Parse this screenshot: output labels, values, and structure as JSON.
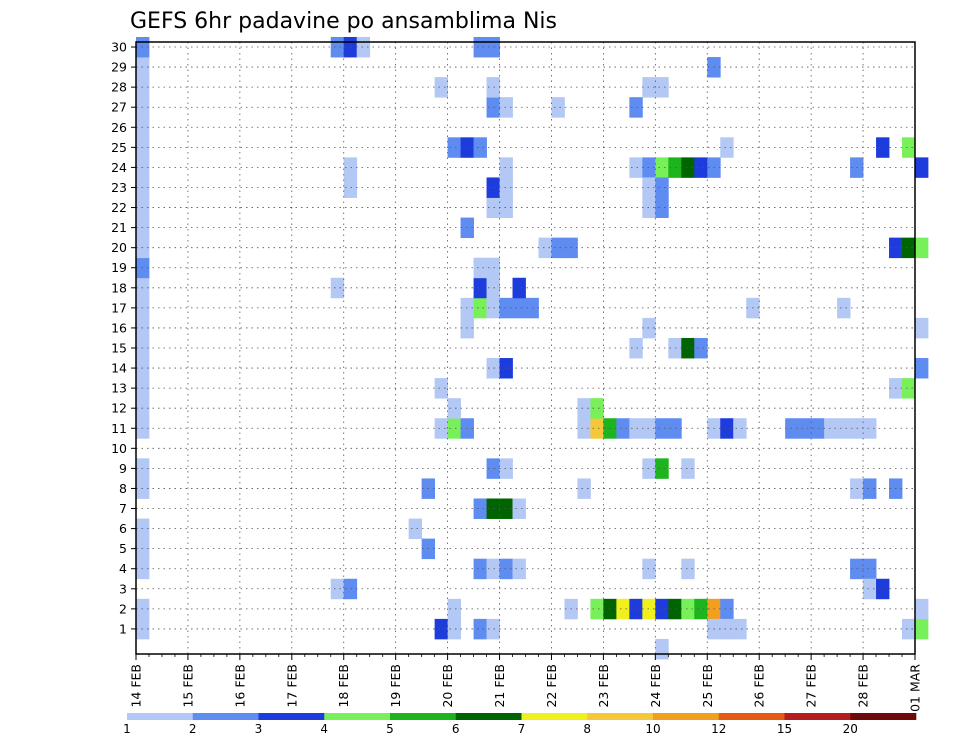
{
  "chart_data": {
    "type": "heatmap",
    "title": "GEFS 6hr padavine po ansamblima Nis",
    "xlabel": "",
    "ylabel": "",
    "x_tick_labels": [
      "14 FEB",
      "15 FEB",
      "16 FEB",
      "17 FEB",
      "18 FEB",
      "19 FEB",
      "20 FEB",
      "21 FEB",
      "22 FEB",
      "23 FEB",
      "24 FEB",
      "25 FEB",
      "26 FEB",
      "27 FEB",
      "28 FEB",
      "01 MAR"
    ],
    "x_unit": "6-hour step from 14 FEB 00Z",
    "y_tick_labels": [
      1,
      2,
      3,
      4,
      5,
      6,
      7,
      8,
      9,
      10,
      11,
      12,
      13,
      14,
      15,
      16,
      17,
      18,
      19,
      20,
      21,
      22,
      23,
      24,
      25,
      26,
      27,
      28,
      29,
      30
    ],
    "grid": true,
    "colorbar": {
      "labels": [
        "1",
        "2",
        "3",
        "4",
        "5",
        "6",
        "7",
        "8",
        "10",
        "12",
        "15",
        "20"
      ],
      "colors": [
        "#b4c8f5",
        "#5f8cf0",
        "#1e3cdc",
        "#78f05a",
        "#1eb41e",
        "#006400",
        "#f0f01e",
        "#f5c83c",
        "#f0a01e",
        "#e65a14",
        "#b41e1e",
        "#6e0a0a"
      ]
    },
    "values": [
      {
        "x": 0,
        "y": 1,
        "c": 1
      },
      {
        "x": 0,
        "y": 2,
        "c": 1
      },
      {
        "x": 0,
        "y": 4,
        "c": 1
      },
      {
        "x": 0,
        "y": 5,
        "c": 1
      },
      {
        "x": 0,
        "y": 6,
        "c": 1
      },
      {
        "x": 0,
        "y": 8,
        "c": 1
      },
      {
        "x": 0,
        "y": 9,
        "c": 1
      },
      {
        "x": 0,
        "y": 11,
        "c": 1
      },
      {
        "x": 0,
        "y": 12,
        "c": 1
      },
      {
        "x": 0,
        "y": 13,
        "c": 1
      },
      {
        "x": 0,
        "y": 14,
        "c": 1
      },
      {
        "x": 0,
        "y": 15,
        "c": 1
      },
      {
        "x": 0,
        "y": 16,
        "c": 1
      },
      {
        "x": 0,
        "y": 17,
        "c": 1
      },
      {
        "x": 0,
        "y": 18,
        "c": 1
      },
      {
        "x": 0,
        "y": 19,
        "c": 2
      },
      {
        "x": 0,
        "y": 20,
        "c": 1
      },
      {
        "x": 0,
        "y": 21,
        "c": 1
      },
      {
        "x": 0,
        "y": 22,
        "c": 1
      },
      {
        "x": 0,
        "y": 23,
        "c": 1
      },
      {
        "x": 0,
        "y": 24,
        "c": 1
      },
      {
        "x": 0,
        "y": 25,
        "c": 1
      },
      {
        "x": 0,
        "y": 26,
        "c": 1
      },
      {
        "x": 0,
        "y": 27,
        "c": 1
      },
      {
        "x": 0,
        "y": 28,
        "c": 1
      },
      {
        "x": 0,
        "y": 29,
        "c": 1
      },
      {
        "x": 0,
        "y": 30,
        "c": 2
      },
      {
        "x": 15,
        "y": 3,
        "c": 1
      },
      {
        "x": 16,
        "y": 3,
        "c": 2
      },
      {
        "x": 15,
        "y": 18,
        "c": 1
      },
      {
        "x": 16,
        "y": 23,
        "c": 1
      },
      {
        "x": 16,
        "y": 24,
        "c": 1
      },
      {
        "x": 15,
        "y": 30,
        "c": 2
      },
      {
        "x": 16,
        "y": 30,
        "c": 3
      },
      {
        "x": 17,
        "y": 30,
        "c": 1
      },
      {
        "x": 21,
        "y": 6,
        "c": 1
      },
      {
        "x": 22,
        "y": 5,
        "c": 2
      },
      {
        "x": 22,
        "y": 8,
        "c": 2
      },
      {
        "x": 23,
        "y": 1,
        "c": 3
      },
      {
        "x": 23,
        "y": 11,
        "c": 1
      },
      {
        "x": 24,
        "y": 11,
        "c": 4
      },
      {
        "x": 25,
        "y": 11,
        "c": 2
      },
      {
        "x": 24,
        "y": 12,
        "c": 1
      },
      {
        "x": 23,
        "y": 13,
        "c": 1
      },
      {
        "x": 24,
        "y": 1,
        "c": 1
      },
      {
        "x": 24,
        "y": 2,
        "c": 1
      },
      {
        "x": 25,
        "y": 21,
        "c": 2
      },
      {
        "x": 24,
        "y": 25,
        "c": 2
      },
      {
        "x": 25,
        "y": 25,
        "c": 3
      },
      {
        "x": 26,
        "y": 25,
        "c": 2
      },
      {
        "x": 23,
        "y": 28,
        "c": 1
      },
      {
        "x": 26,
        "y": 1,
        "c": 2
      },
      {
        "x": 27,
        "y": 1,
        "c": 1
      },
      {
        "x": 26,
        "y": 4,
        "c": 2
      },
      {
        "x": 27,
        "y": 4,
        "c": 1
      },
      {
        "x": 28,
        "y": 4,
        "c": 2
      },
      {
        "x": 29,
        "y": 4,
        "c": 1
      },
      {
        "x": 26,
        "y": 7,
        "c": 2
      },
      {
        "x": 27,
        "y": 7,
        "c": 6
      },
      {
        "x": 28,
        "y": 7,
        "c": 6
      },
      {
        "x": 29,
        "y": 7,
        "c": 1
      },
      {
        "x": 27,
        "y": 9,
        "c": 2
      },
      {
        "x": 28,
        "y": 9,
        "c": 1
      },
      {
        "x": 27,
        "y": 14,
        "c": 1
      },
      {
        "x": 28,
        "y": 14,
        "c": 3
      },
      {
        "x": 25,
        "y": 16,
        "c": 1
      },
      {
        "x": 25,
        "y": 17,
        "c": 1
      },
      {
        "x": 26,
        "y": 17,
        "c": 4
      },
      {
        "x": 27,
        "y": 17,
        "c": 1
      },
      {
        "x": 28,
        "y": 17,
        "c": 2
      },
      {
        "x": 29,
        "y": 17,
        "c": 2
      },
      {
        "x": 30,
        "y": 17,
        "c": 2
      },
      {
        "x": 26,
        "y": 18,
        "c": 3
      },
      {
        "x": 27,
        "y": 18,
        "c": 1
      },
      {
        "x": 29,
        "y": 18,
        "c": 3
      },
      {
        "x": 26,
        "y": 19,
        "c": 1
      },
      {
        "x": 27,
        "y": 19,
        "c": 1
      },
      {
        "x": 27,
        "y": 22,
        "c": 1
      },
      {
        "x": 28,
        "y": 22,
        "c": 1
      },
      {
        "x": 27,
        "y": 23,
        "c": 3
      },
      {
        "x": 28,
        "y": 23,
        "c": 1
      },
      {
        "x": 28,
        "y": 24,
        "c": 1
      },
      {
        "x": 27,
        "y": 27,
        "c": 2
      },
      {
        "x": 28,
        "y": 27,
        "c": 1
      },
      {
        "x": 27,
        "y": 28,
        "c": 1
      },
      {
        "x": 26,
        "y": 30,
        "c": 2
      },
      {
        "x": 27,
        "y": 30,
        "c": 2
      },
      {
        "x": 31,
        "y": 20,
        "c": 1
      },
      {
        "x": 32,
        "y": 20,
        "c": 2
      },
      {
        "x": 33,
        "y": 20,
        "c": 2
      },
      {
        "x": 32,
        "y": 27,
        "c": 1
      },
      {
        "x": 33,
        "y": 2,
        "c": 1
      },
      {
        "x": 34,
        "y": 8,
        "c": 1
      },
      {
        "x": 34,
        "y": 11,
        "c": 1
      },
      {
        "x": 35,
        "y": 11,
        "c": 8
      },
      {
        "x": 36,
        "y": 11,
        "c": 5
      },
      {
        "x": 37,
        "y": 11,
        "c": 2
      },
      {
        "x": 38,
        "y": 11,
        "c": 1
      },
      {
        "x": 39,
        "y": 11,
        "c": 1
      },
      {
        "x": 40,
        "y": 11,
        "c": 2
      },
      {
        "x": 41,
        "y": 11,
        "c": 2
      },
      {
        "x": 34,
        "y": 12,
        "c": 1
      },
      {
        "x": 35,
        "y": 12,
        "c": 4
      },
      {
        "x": 35,
        "y": 2,
        "c": 4
      },
      {
        "x": 36,
        "y": 2,
        "c": 6
      },
      {
        "x": 37,
        "y": 2,
        "c": 7
      },
      {
        "x": 38,
        "y": 2,
        "c": 3
      },
      {
        "x": 39,
        "y": 2,
        "c": 7
      },
      {
        "x": 40,
        "y": 2,
        "c": 3
      },
      {
        "x": 41,
        "y": 2,
        "c": 6
      },
      {
        "x": 42,
        "y": 2,
        "c": 4
      },
      {
        "x": 43,
        "y": 2,
        "c": 5
      },
      {
        "x": 44,
        "y": 2,
        "c": 9
      },
      {
        "x": 45,
        "y": 2,
        "c": 2
      },
      {
        "x": 38,
        "y": 15,
        "c": 1
      },
      {
        "x": 39,
        "y": 16,
        "c": 1
      },
      {
        "x": 38,
        "y": 24,
        "c": 1
      },
      {
        "x": 39,
        "y": 24,
        "c": 2
      },
      {
        "x": 40,
        "y": 24,
        "c": 4
      },
      {
        "x": 41,
        "y": 24,
        "c": 5
      },
      {
        "x": 42,
        "y": 24,
        "c": 6
      },
      {
        "x": 43,
        "y": 24,
        "c": 3
      },
      {
        "x": 44,
        "y": 24,
        "c": 2
      },
      {
        "x": 38,
        "y": 27,
        "c": 2
      },
      {
        "x": 39,
        "y": 28,
        "c": 1
      },
      {
        "x": 40,
        "y": 28,
        "c": 1
      },
      {
        "x": 39,
        "y": 23,
        "c": 1
      },
      {
        "x": 40,
        "y": 23,
        "c": 2
      },
      {
        "x": 39,
        "y": 22,
        "c": 1
      },
      {
        "x": 40,
        "y": 22,
        "c": 2
      },
      {
        "x": 39,
        "y": 9,
        "c": 1
      },
      {
        "x": 40,
        "y": 9,
        "c": 5
      },
      {
        "x": 39,
        "y": 4,
        "c": 1
      },
      {
        "x": 40,
        "y": 0,
        "c": 1
      },
      {
        "x": 41,
        "y": 15,
        "c": 1
      },
      {
        "x": 42,
        "y": 15,
        "c": 6
      },
      {
        "x": 43,
        "y": 15,
        "c": 2
      },
      {
        "x": 42,
        "y": 9,
        "c": 1
      },
      {
        "x": 42,
        "y": 4,
        "c": 1
      },
      {
        "x": 44,
        "y": 29,
        "c": 2
      },
      {
        "x": 44,
        "y": 11,
        "c": 1
      },
      {
        "x": 45,
        "y": 11,
        "c": 3
      },
      {
        "x": 46,
        "y": 11,
        "c": 1
      },
      {
        "x": 44,
        "y": 1,
        "c": 1
      },
      {
        "x": 45,
        "y": 1,
        "c": 1
      },
      {
        "x": 46,
        "y": 1,
        "c": 1
      },
      {
        "x": 45,
        "y": 25,
        "c": 1
      },
      {
        "x": 47,
        "y": 17,
        "c": 1
      },
      {
        "x": 50,
        "y": 11,
        "c": 2
      },
      {
        "x": 51,
        "y": 11,
        "c": 2
      },
      {
        "x": 52,
        "y": 11,
        "c": 2
      },
      {
        "x": 53,
        "y": 11,
        "c": 1
      },
      {
        "x": 54,
        "y": 11,
        "c": 1
      },
      {
        "x": 55,
        "y": 11,
        "c": 1
      },
      {
        "x": 56,
        "y": 11,
        "c": 1
      },
      {
        "x": 54,
        "y": 17,
        "c": 1
      },
      {
        "x": 55,
        "y": 4,
        "c": 2
      },
      {
        "x": 56,
        "y": 4,
        "c": 2
      },
      {
        "x": 55,
        "y": 8,
        "c": 1
      },
      {
        "x": 56,
        "y": 8,
        "c": 2
      },
      {
        "x": 55,
        "y": 24,
        "c": 2
      },
      {
        "x": 56,
        "y": 3,
        "c": 1
      },
      {
        "x": 57,
        "y": 3,
        "c": 3
      },
      {
        "x": 57,
        "y": 25,
        "c": 3
      },
      {
        "x": 58,
        "y": 20,
        "c": 3
      },
      {
        "x": 59,
        "y": 20,
        "c": 6
      },
      {
        "x": 60,
        "y": 20,
        "c": 4
      },
      {
        "x": 58,
        "y": 13,
        "c": 1
      },
      {
        "x": 59,
        "y": 13,
        "c": 4
      },
      {
        "x": 58,
        "y": 8,
        "c": 2
      },
      {
        "x": 59,
        "y": 25,
        "c": 4
      },
      {
        "x": 59,
        "y": 1,
        "c": 1
      },
      {
        "x": 60,
        "y": 1,
        "c": 4
      },
      {
        "x": 60,
        "y": 2,
        "c": 1
      },
      {
        "x": 60,
        "y": 14,
        "c": 2
      },
      {
        "x": 60,
        "y": 16,
        "c": 1
      },
      {
        "x": 60,
        "y": 24,
        "c": 3
      }
    ]
  }
}
